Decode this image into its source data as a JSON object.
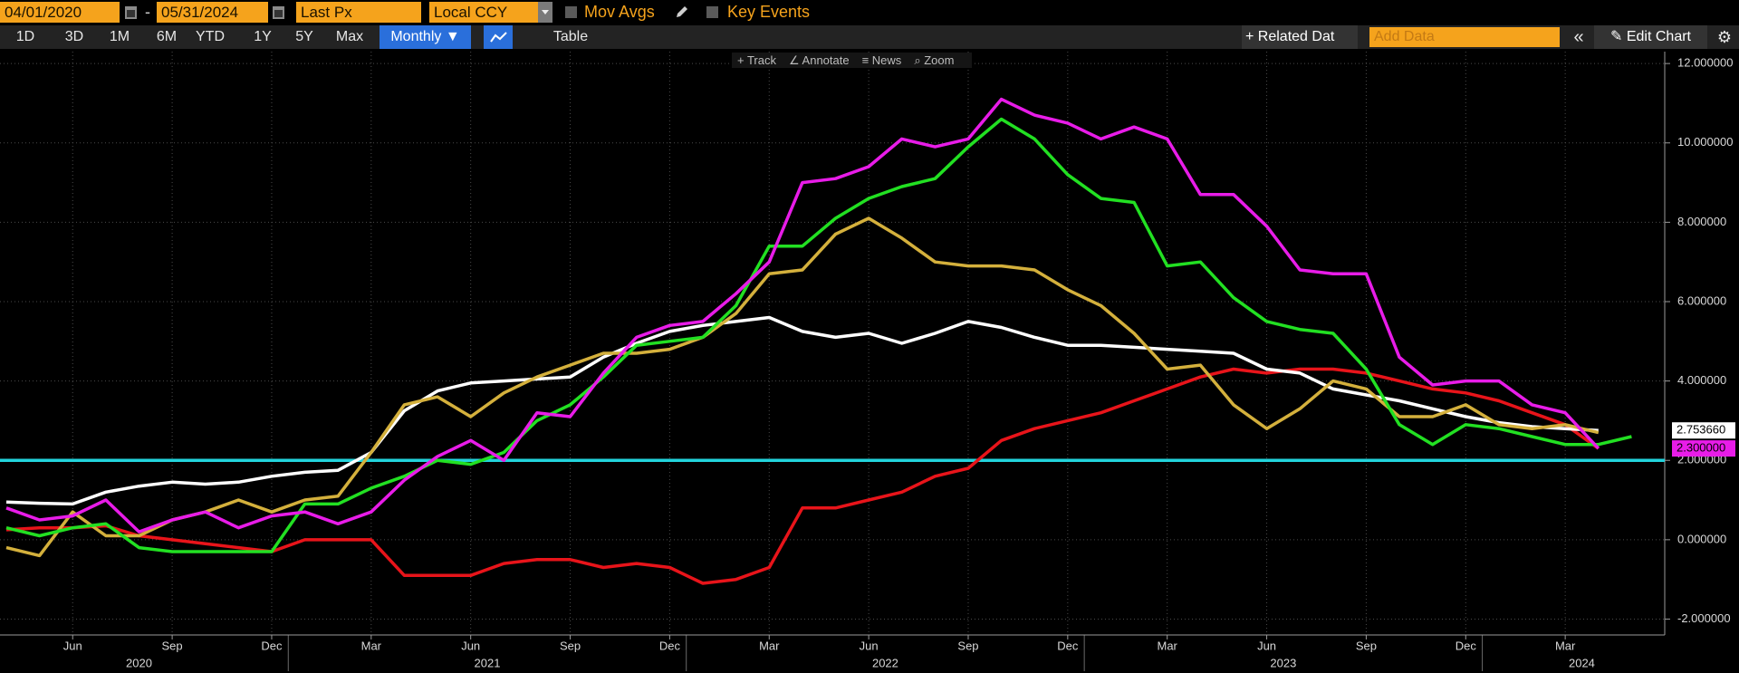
{
  "toolbar": {
    "start_date": "04/01/2020",
    "separator": "-",
    "end_date": "05/31/2024",
    "field": "Last Px",
    "currency": "Local CCY",
    "mov_avgs": "Mov Avgs",
    "key_events": "Key Events",
    "range_buttons": [
      "1D",
      "3D",
      "1M",
      "6M",
      "YTD",
      "1Y",
      "5Y",
      "Max"
    ],
    "period": "Monthly ▼",
    "table": "Table",
    "related_data": "+ Related Dat",
    "add_data": "Add Data",
    "collapse": "«",
    "edit_chart": "✎ Edit Chart",
    "settings": "⚙",
    "tools": [
      "+ Track",
      "∠ Annotate",
      "≡ News",
      "⌕ Zoom"
    ]
  },
  "chart_data": {
    "type": "line",
    "x": [
      "2020-04",
      "2020-05",
      "2020-06",
      "2020-07",
      "2020-08",
      "2020-09",
      "2020-10",
      "2020-11",
      "2020-12",
      "2021-01",
      "2021-02",
      "2021-03",
      "2021-04",
      "2021-05",
      "2021-06",
      "2021-07",
      "2021-08",
      "2021-09",
      "2021-10",
      "2021-11",
      "2021-12",
      "2022-01",
      "2022-02",
      "2022-03",
      "2022-04",
      "2022-05",
      "2022-06",
      "2022-07",
      "2022-08",
      "2022-09",
      "2022-10",
      "2022-11",
      "2022-12",
      "2023-01",
      "2023-02",
      "2023-03",
      "2023-04",
      "2023-05",
      "2023-06",
      "2023-07",
      "2023-08",
      "2023-09",
      "2023-10",
      "2023-11",
      "2023-12",
      "2024-01",
      "2024-02",
      "2024-03",
      "2024-04",
      "2024-05"
    ],
    "series": [
      {
        "color": "#e8141a",
        "values": [
          0.25,
          0.3,
          0.3,
          0.35,
          0.1,
          0.0,
          -0.1,
          -0.2,
          -0.3,
          0.0,
          0.0,
          0.0,
          -0.9,
          -0.9,
          -0.9,
          -0.6,
          -0.5,
          -0.5,
          -0.7,
          -0.6,
          -0.7,
          -1.1,
          -1.0,
          -0.7,
          0.8,
          0.8,
          1.0,
          1.2,
          1.6,
          1.8,
          2.5,
          2.8,
          3.0,
          3.2,
          3.5,
          3.8,
          4.1,
          4.3,
          4.2,
          4.3,
          4.3,
          4.2,
          4.0,
          3.8,
          3.7,
          3.5,
          3.2,
          2.9,
          2.3,
          null
        ]
      },
      {
        "color": "#ffffff",
        "values": [
          0.95,
          0.92,
          0.9,
          1.2,
          1.35,
          1.45,
          1.4,
          1.45,
          1.6,
          1.7,
          1.75,
          2.2,
          3.25,
          3.75,
          3.95,
          4.0,
          4.05,
          4.1,
          4.6,
          4.95,
          5.25,
          5.4,
          5.5,
          5.6,
          5.25,
          5.1,
          5.2,
          4.95,
          5.2,
          5.5,
          5.35,
          5.1,
          4.9,
          4.9,
          4.85,
          4.8,
          4.75,
          4.7,
          4.3,
          4.2,
          3.8,
          3.65,
          3.5,
          3.3,
          3.1,
          2.95,
          2.85,
          2.8,
          2.75366,
          null
        ],
        "value_labels": [
          null,
          null,
          null,
          null,
          null,
          null,
          null,
          null,
          null,
          null,
          null,
          null,
          null,
          null,
          null,
          null,
          null,
          null,
          null,
          null,
          null,
          null,
          null,
          null,
          null,
          null,
          null,
          null,
          null,
          null,
          null,
          null,
          null,
          null,
          null,
          null,
          null,
          null,
          null,
          null,
          null,
          null,
          null,
          null,
          null,
          null,
          null,
          null,
          "2.753660",
          null
        ]
      },
      {
        "color": "#d4b03c",
        "values": [
          -0.2,
          -0.4,
          0.7,
          0.1,
          0.1,
          0.5,
          0.7,
          1.0,
          0.7,
          1.0,
          1.1,
          2.2,
          3.4,
          3.6,
          3.1,
          3.7,
          4.1,
          4.4,
          4.7,
          4.7,
          4.8,
          5.1,
          5.7,
          6.7,
          6.8,
          7.7,
          8.1,
          7.6,
          7.0,
          6.9,
          6.9,
          6.8,
          6.3,
          5.9,
          5.2,
          4.3,
          4.4,
          3.4,
          2.8,
          3.3,
          4.0,
          3.8,
          3.1,
          3.1,
          3.4,
          2.9,
          2.8,
          2.9,
          2.7,
          null
        ]
      },
      {
        "color": "#22e022",
        "values": [
          0.3,
          0.1,
          0.3,
          0.4,
          -0.2,
          -0.3,
          -0.3,
          -0.3,
          -0.3,
          0.9,
          0.9,
          1.3,
          1.6,
          2.0,
          1.9,
          2.2,
          3.0,
          3.4,
          4.1,
          4.9,
          5.0,
          5.1,
          5.9,
          7.4,
          7.4,
          8.1,
          8.6,
          8.9,
          9.1,
          9.9,
          10.6,
          10.1,
          9.2,
          8.6,
          8.5,
          6.9,
          7.0,
          6.1,
          5.5,
          5.3,
          5.2,
          4.3,
          2.9,
          2.4,
          2.9,
          2.8,
          2.6,
          2.4,
          2.4,
          2.6
        ]
      },
      {
        "color": "#e81ce8",
        "values": [
          0.8,
          0.5,
          0.6,
          1.0,
          0.2,
          0.5,
          0.7,
          0.3,
          0.6,
          0.7,
          0.4,
          0.7,
          1.5,
          2.1,
          2.5,
          2.0,
          3.2,
          3.1,
          4.2,
          5.1,
          5.4,
          5.5,
          6.2,
          7.0,
          9.0,
          9.1,
          9.4,
          10.1,
          9.9,
          10.1,
          11.1,
          10.7,
          10.5,
          10.1,
          10.4,
          10.1,
          8.7,
          8.7,
          7.9,
          6.8,
          6.7,
          6.7,
          4.6,
          3.9,
          4.0,
          4.0,
          3.4,
          3.2,
          2.3,
          null
        ],
        "value_labels": [
          null,
          null,
          null,
          null,
          null,
          null,
          null,
          null,
          null,
          null,
          null,
          null,
          null,
          null,
          null,
          null,
          null,
          null,
          null,
          null,
          null,
          null,
          null,
          null,
          null,
          null,
          null,
          null,
          null,
          null,
          null,
          null,
          null,
          null,
          null,
          null,
          null,
          null,
          null,
          null,
          null,
          null,
          null,
          null,
          null,
          null,
          null,
          null,
          "2.300000",
          null
        ]
      }
    ],
    "hline": 2,
    "hline_color": "#22d3dc",
    "xlim": [
      "2020-04",
      "2024-06"
    ],
    "xticks": [
      {
        "value": "2020-06",
        "label": "Jun"
      },
      {
        "value": "2020-09",
        "label": "Sep"
      },
      {
        "value": "2020-12",
        "label": "Dec"
      },
      {
        "value": "2021-03",
        "label": "Mar"
      },
      {
        "value": "2021-06",
        "label": "Jun"
      },
      {
        "value": "2021-09",
        "label": "Sep"
      },
      {
        "value": "2021-12",
        "label": "Dec"
      },
      {
        "value": "2022-03",
        "label": "Mar"
      },
      {
        "value": "2022-06",
        "label": "Jun"
      },
      {
        "value": "2022-09",
        "label": "Sep"
      },
      {
        "value": "2022-12",
        "label": "Dec"
      },
      {
        "value": "2023-03",
        "label": "Mar"
      },
      {
        "value": "2023-06",
        "label": "Jun"
      },
      {
        "value": "2023-09",
        "label": "Sep"
      },
      {
        "value": "2023-12",
        "label": "Dec"
      },
      {
        "value": "2024-03",
        "label": "Mar"
      }
    ],
    "years": [
      "2020",
      "2021",
      "2022",
      "2023",
      "2024"
    ],
    "ylim": [
      -2.4,
      12.3
    ],
    "yticks": [
      {
        "value": -2,
        "label": "-2.000000"
      },
      {
        "value": 0,
        "label": "0.000000"
      },
      {
        "value": 2,
        "label": "2.000000"
      },
      {
        "value": 4,
        "label": "4.000000"
      },
      {
        "value": 6,
        "label": "6.000000"
      },
      {
        "value": 8,
        "label": "8.000000"
      },
      {
        "value": 10,
        "label": "10.000000"
      },
      {
        "value": 12,
        "label": "12.000000"
      }
    ],
    "grid": true
  }
}
